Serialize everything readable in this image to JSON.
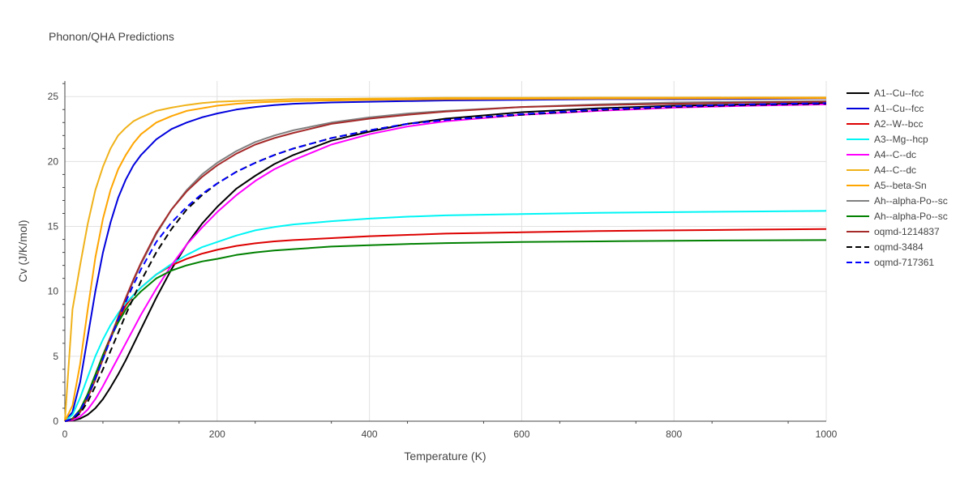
{
  "chart_data": {
    "type": "line",
    "title": "Phonon/QHA Predictions",
    "xlabel": "Temperature (K)",
    "ylabel": "Cv (J/K/mol)",
    "xlim": [
      0,
      1000
    ],
    "ylim": [
      0,
      26.2
    ],
    "xticks": [
      0,
      200,
      400,
      600,
      800,
      1000
    ],
    "yticks": [
      0,
      5,
      10,
      15,
      20,
      25
    ],
    "grid": true,
    "legend_position": "right",
    "x": [
      0,
      10,
      20,
      30,
      40,
      50,
      60,
      70,
      80,
      90,
      100,
      120,
      140,
      160,
      180,
      200,
      225,
      250,
      275,
      300,
      350,
      400,
      450,
      500,
      600,
      700,
      800,
      900,
      1000
    ],
    "series": [
      {
        "name": "A1--Cu--fcc",
        "color": "#000000",
        "dash": "solid",
        "values": [
          0,
          0.05,
          0.2,
          0.5,
          1.0,
          1.7,
          2.6,
          3.6,
          4.7,
          5.9,
          7.1,
          9.5,
          11.7,
          13.6,
          15.2,
          16.5,
          17.9,
          18.9,
          19.8,
          20.5,
          21.6,
          22.3,
          22.9,
          23.3,
          23.8,
          24.1,
          24.3,
          24.4,
          24.5
        ]
      },
      {
        "name": "A1--Cu--fcc",
        "color": "#0000dd",
        "dash": "solid",
        "values": [
          0,
          0.7,
          3.0,
          6.5,
          10.0,
          13.0,
          15.3,
          17.2,
          18.6,
          19.7,
          20.5,
          21.7,
          22.5,
          23.0,
          23.4,
          23.7,
          24.0,
          24.2,
          24.35,
          24.45,
          24.55,
          24.6,
          24.65,
          24.7,
          24.75,
          24.8,
          24.8,
          24.82,
          24.85
        ]
      },
      {
        "name": "A2--W--bcc",
        "color": "#dd0000",
        "dash": "solid",
        "values": [
          0,
          0.15,
          0.8,
          2.0,
          3.5,
          5.1,
          6.5,
          7.8,
          8.9,
          9.7,
          10.3,
          11.3,
          12.0,
          12.5,
          12.9,
          13.2,
          13.5,
          13.7,
          13.85,
          13.95,
          14.1,
          14.25,
          14.35,
          14.45,
          14.55,
          14.65,
          14.7,
          14.75,
          14.8
        ]
      },
      {
        "name": "A3--Mg--hcp",
        "color": "#00f5f5",
        "dash": "solid",
        "values": [
          0,
          0.5,
          1.8,
          3.4,
          5.0,
          6.3,
          7.4,
          8.3,
          9.1,
          9.7,
          10.3,
          11.3,
          12.1,
          12.8,
          13.4,
          13.8,
          14.3,
          14.7,
          14.95,
          15.15,
          15.4,
          15.6,
          15.75,
          15.85,
          15.95,
          16.05,
          16.1,
          16.15,
          16.2
        ]
      },
      {
        "name": "A4--C--dc",
        "color": "#ff00ff",
        "dash": "solid",
        "values": [
          0,
          0.08,
          0.35,
          0.9,
          1.7,
          2.7,
          3.8,
          4.9,
          6.0,
          7.1,
          8.2,
          10.2,
          12.0,
          13.6,
          14.9,
          16.1,
          17.4,
          18.5,
          19.4,
          20.1,
          21.3,
          22.1,
          22.7,
          23.1,
          23.6,
          23.9,
          24.15,
          24.3,
          24.4
        ]
      },
      {
        "name": "A4--C--dc",
        "color": "#f0b21a",
        "dash": "solid",
        "values": [
          0,
          8.6,
          12.0,
          15.2,
          17.8,
          19.6,
          21.0,
          22.0,
          22.6,
          23.1,
          23.4,
          23.9,
          24.15,
          24.35,
          24.5,
          24.6,
          24.65,
          24.7,
          24.75,
          24.8,
          24.82,
          24.85,
          24.88,
          24.9,
          24.9,
          24.92,
          24.92,
          24.93,
          24.93
        ]
      },
      {
        "name": "A5--beta-Sn",
        "color": "#ffa500",
        "dash": "solid",
        "values": [
          0,
          1.2,
          4.4,
          8.6,
          12.6,
          15.6,
          17.8,
          19.4,
          20.5,
          21.4,
          22.1,
          23.0,
          23.5,
          23.9,
          24.1,
          24.3,
          24.45,
          24.55,
          24.6,
          24.65,
          24.7,
          24.75,
          24.78,
          24.8,
          24.83,
          24.85,
          24.86,
          24.87,
          24.88
        ]
      },
      {
        "name": "Ah--alpha-Po--sc",
        "color": "#808080",
        "dash": "solid",
        "values": [
          0,
          0.2,
          0.8,
          1.9,
          3.3,
          4.9,
          6.5,
          8.0,
          9.4,
          10.8,
          12.1,
          14.4,
          16.3,
          17.8,
          19.0,
          19.9,
          20.8,
          21.5,
          22.0,
          22.4,
          23.0,
          23.4,
          23.7,
          23.9,
          24.2,
          24.4,
          24.55,
          24.6,
          24.65
        ]
      },
      {
        "name": "Ah--alpha-Po--sc",
        "color": "#008000",
        "dash": "solid",
        "values": [
          0,
          0.2,
          0.9,
          2.1,
          3.6,
          5.1,
          6.4,
          7.6,
          8.6,
          9.4,
          10.0,
          11.0,
          11.6,
          12.0,
          12.3,
          12.5,
          12.8,
          13.0,
          13.15,
          13.25,
          13.45,
          13.55,
          13.65,
          13.72,
          13.8,
          13.85,
          13.9,
          13.93,
          13.95
        ]
      },
      {
        "name": "oqmd-1214837",
        "color": "#a52a2a",
        "dash": "solid",
        "values": [
          0,
          0.15,
          0.7,
          1.8,
          3.2,
          4.8,
          6.4,
          8.0,
          9.5,
          10.9,
          12.2,
          14.5,
          16.3,
          17.7,
          18.8,
          19.7,
          20.6,
          21.3,
          21.8,
          22.2,
          22.9,
          23.3,
          23.6,
          23.85,
          24.2,
          24.35,
          24.45,
          24.55,
          24.6
        ]
      },
      {
        "name": "oqmd-3484",
        "color": "#000000",
        "dash": "dashed",
        "values": [
          0,
          0.15,
          0.6,
          1.5,
          2.7,
          4.0,
          5.4,
          6.8,
          8.2,
          9.5,
          10.8,
          13.0,
          14.8,
          16.3,
          17.4,
          18.3,
          19.2,
          19.9,
          20.5,
          21.0,
          21.8,
          22.4,
          22.9,
          23.2,
          23.6,
          23.95,
          24.2,
          24.35,
          24.45
        ]
      },
      {
        "name": "oqmd-717361",
        "color": "#0000ff",
        "dash": "dashed",
        "values": [
          0,
          0.2,
          0.8,
          1.9,
          3.3,
          4.8,
          6.3,
          7.8,
          9.2,
          10.5,
          11.7,
          13.8,
          15.3,
          16.5,
          17.5,
          18.3,
          19.2,
          19.9,
          20.5,
          21.0,
          21.8,
          22.4,
          22.9,
          23.2,
          23.65,
          24.0,
          24.25,
          24.4,
          24.5
        ]
      }
    ]
  }
}
